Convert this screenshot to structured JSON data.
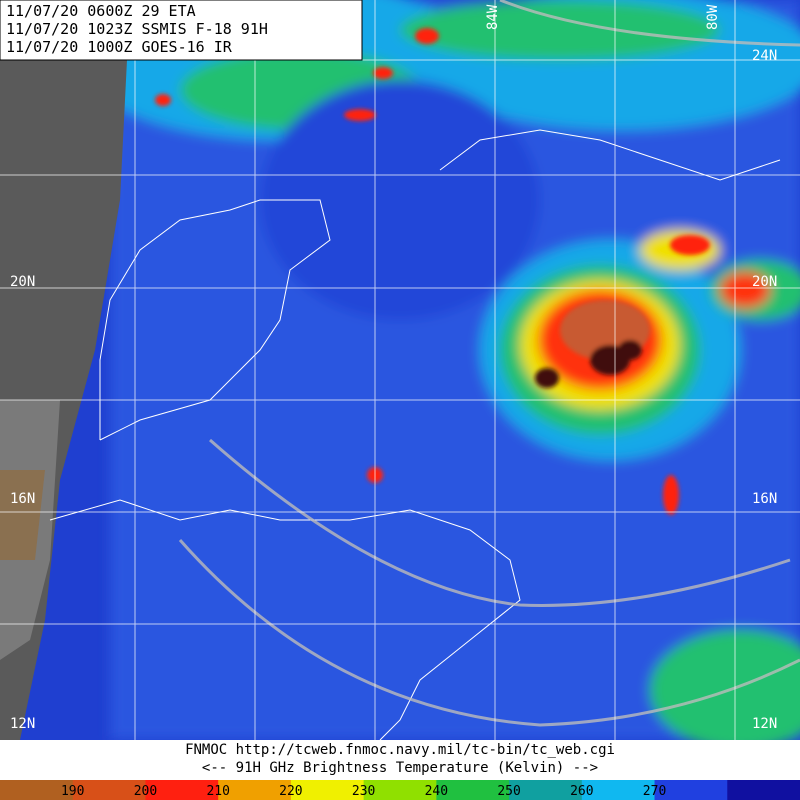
{
  "header": {
    "lines": [
      "11/07/20 0600Z  29 ETA",
      "11/07/20 1023Z  SSMIS F-18 91H",
      "11/07/20 1000Z  GOES-16 IR"
    ]
  },
  "grid_labels": {
    "longitude": [
      "84W",
      "80W"
    ],
    "latitude_left": [
      "20N",
      "16N",
      "12N"
    ],
    "latitude_right": [
      "24N",
      "20N",
      "16N",
      "12N"
    ]
  },
  "footer": {
    "source": "FNMOC  http://tcweb.fnmoc.navy.mil/tc-bin/tc_web.cgi",
    "caption": "<--  91H GHz Brightness Temperature (Kelvin)  -->"
  },
  "colorbar": {
    "labels": [
      190,
      200,
      210,
      220,
      230,
      240,
      250,
      260,
      270
    ]
  }
}
